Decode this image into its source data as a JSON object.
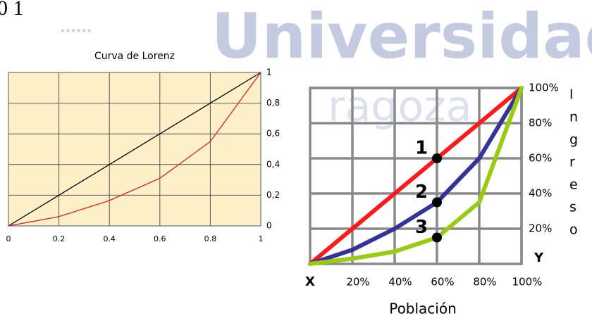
{
  "header_fragment": "0 1",
  "watermark": {
    "title": "Universidad",
    "subtitle": "ragoza"
  },
  "chart_data": [
    {
      "type": "line",
      "title": "Curva de Lorenz",
      "background": "#fdf0c8",
      "grid": true,
      "y_axis_side": "right",
      "x": [
        0,
        0.2,
        0.4,
        0.6,
        0.8,
        1
      ],
      "series": [
        {
          "color": "#000000",
          "values": [
            0,
            0.2,
            0.4,
            0.6,
            0.8,
            1
          ]
        },
        {
          "color": "#e02020",
          "values": [
            0,
            0.06,
            0.165,
            0.31,
            0.55,
            1
          ]
        }
      ],
      "xlim": [
        0,
        1
      ],
      "xticks": [
        0,
        0.2,
        0.4,
        0.6,
        0.8,
        1
      ],
      "ylim": [
        0,
        1
      ],
      "yticks": [
        0,
        {
          "value": 0.2,
          "label": "0,2"
        },
        {
          "value": 0.4,
          "label": "0,4"
        },
        {
          "value": 0.6,
          "label": "0,6"
        },
        {
          "value": 0.8,
          "label": "0,8"
        },
        1
      ]
    },
    {
      "type": "line",
      "xlabel": "Población",
      "x_axis_name": "X",
      "y_axis_name": "Y",
      "grid": true,
      "y_axis_side": "right",
      "x": [
        0,
        20,
        40,
        60,
        80,
        100
      ],
      "series": [
        {
          "color": "#ff1a1a",
          "values": [
            0,
            20,
            40,
            60,
            80,
            100
          ]
        },
        {
          "color": "#33339a",
          "values": [
            0,
            8,
            20,
            35,
            60,
            100
          ]
        },
        {
          "color": "#99cc11",
          "values": [
            0,
            3,
            7,
            15,
            35,
            100
          ]
        }
      ],
      "xlim": [
        0,
        100
      ],
      "xticks": [
        {
          "value": 20,
          "label": "20%"
        },
        {
          "value": 40,
          "label": "40%"
        },
        {
          "value": 60,
          "label": "60%"
        },
        {
          "value": 80,
          "label": "80%"
        },
        {
          "value": 100,
          "label": "100%"
        }
      ],
      "ylim": [
        0,
        100
      ],
      "yticks": [
        {
          "value": 20,
          "label": "20%"
        },
        {
          "value": 40,
          "label": "40%"
        },
        {
          "value": 60,
          "label": "60%"
        },
        {
          "value": 80,
          "label": "80%"
        },
        {
          "value": 100,
          "label": "100%"
        }
      ],
      "annotations": [
        {
          "text": "1",
          "x": 60
        },
        {
          "text": "2",
          "x": 60
        },
        {
          "text": "3",
          "x": 60
        }
      ]
    }
  ],
  "side_text": [
    "l",
    "n",
    "g",
    "r",
    "e",
    "s",
    "o"
  ]
}
